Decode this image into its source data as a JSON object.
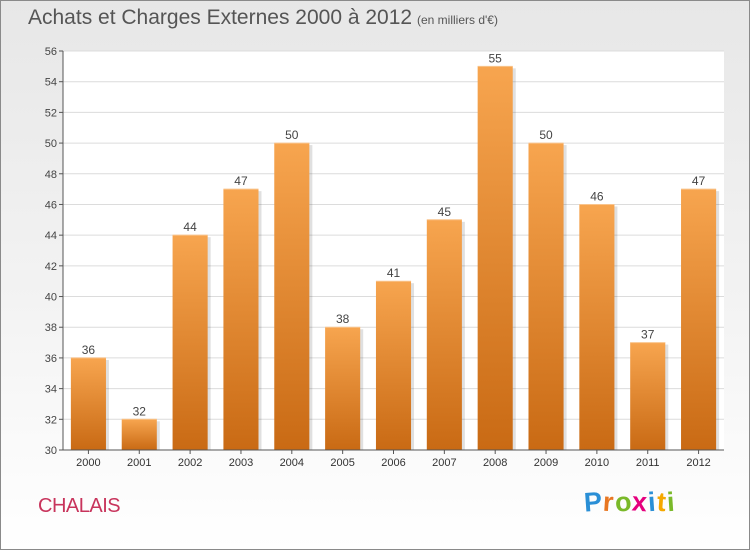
{
  "header": {
    "title": "Achats et Charges Externes 2000 à 2012",
    "subtitle": "(en milliers d'€)"
  },
  "footer": {
    "commune": "CHALAIS",
    "logo_letters": [
      "P",
      "r",
      "o",
      "x",
      "i",
      "t",
      "i"
    ],
    "logo_colors": [
      "#2a8fd6",
      "#e87722",
      "#7ab929",
      "#e5007e",
      "#2a8fd6",
      "#f5a800",
      "#7ab929"
    ]
  },
  "chart_data": {
    "type": "bar",
    "categories": [
      "2000",
      "2001",
      "2002",
      "2003",
      "2004",
      "2005",
      "2006",
      "2007",
      "2008",
      "2009",
      "2010",
      "2011",
      "2012"
    ],
    "values": [
      36,
      32,
      44,
      47,
      50,
      38,
      41,
      45,
      55,
      50,
      46,
      37,
      47
    ],
    "ylim": [
      30,
      56
    ],
    "yticks": [
      30,
      32,
      34,
      36,
      38,
      40,
      42,
      44,
      46,
      48,
      50,
      52,
      54,
      56
    ],
    "grid": true,
    "bar_color_top": "#f7a54f",
    "bar_color_bottom": "#c96a14"
  }
}
